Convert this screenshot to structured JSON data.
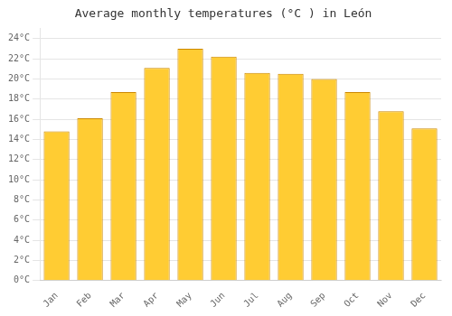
{
  "chart_data": {
    "type": "bar",
    "title": "Average monthly temperatures (°C ) in León",
    "categories": [
      "Jan",
      "Feb",
      "Mar",
      "Apr",
      "May",
      "Jun",
      "Jul",
      "Aug",
      "Sep",
      "Oct",
      "Nov",
      "Dec"
    ],
    "values": [
      14.8,
      16.1,
      18.7,
      21.1,
      23.0,
      22.2,
      20.6,
      20.5,
      20.0,
      18.7,
      16.8,
      15.1
    ],
    "color": "#FFCC33",
    "ylim": [
      0,
      25.0
    ],
    "yticks": [
      {
        "value": 0,
        "label": "0°C"
      },
      {
        "value": 2,
        "label": "2°C"
      },
      {
        "value": 4,
        "label": "4°C"
      },
      {
        "value": 6,
        "label": "6°C"
      },
      {
        "value": 8,
        "label": "8°C"
      },
      {
        "value": 10,
        "label": "10°C"
      },
      {
        "value": 12,
        "label": "12°C"
      },
      {
        "value": 14,
        "label": "14°C"
      },
      {
        "value": 16,
        "label": "16°C"
      },
      {
        "value": 18,
        "label": "18°C"
      },
      {
        "value": 20,
        "label": "20°C"
      },
      {
        "value": 22,
        "label": "22°C"
      },
      {
        "value": 24,
        "label": "24°C"
      }
    ],
    "grid": true
  }
}
